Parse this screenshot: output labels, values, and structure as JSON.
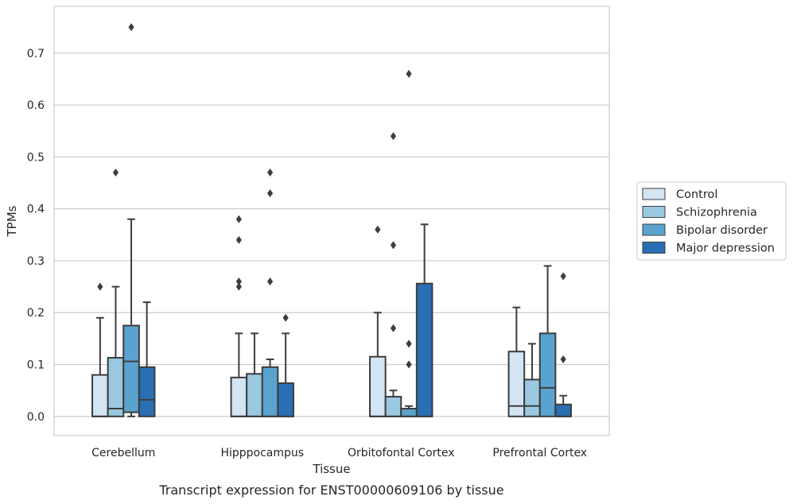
{
  "caption": "Transcript expression for ENST00000609106 by tissue",
  "chart_data": {
    "type": "boxplot",
    "xlabel": "Tissue",
    "ylabel": "TPMs",
    "ylim": [
      -0.037,
      0.79
    ],
    "yticks": [
      0.0,
      0.1,
      0.2,
      0.3,
      0.4,
      0.5,
      0.6,
      0.7
    ],
    "ytick_labels": [
      "0.0",
      "0.1",
      "0.2",
      "0.3",
      "0.4",
      "0.5",
      "0.6",
      "0.7"
    ],
    "grid": "horizontal",
    "legend_position": "right",
    "categories": [
      "Cerebellum",
      "Hipppocampus",
      "Orbitofontal Cortex",
      "Prefrontal Cortex"
    ],
    "series": [
      {
        "name": "Control",
        "color": "#d3e4f3",
        "boxes": [
          {
            "q1": 0.0,
            "median": 0.0,
            "q3": 0.08,
            "whisker_low": 0.0,
            "whisker_high": 0.19,
            "outliers": [
              0.25
            ]
          },
          {
            "q1": 0.0,
            "median": 0.0,
            "q3": 0.075,
            "whisker_low": 0.0,
            "whisker_high": 0.16,
            "outliers": [
              0.25,
              0.26,
              0.34,
              0.38
            ]
          },
          {
            "q1": 0.0,
            "median": 0.0,
            "q3": 0.115,
            "whisker_low": 0.0,
            "whisker_high": 0.2,
            "outliers": [
              0.36
            ]
          },
          {
            "q1": 0.0,
            "median": 0.02,
            "q3": 0.125,
            "whisker_low": 0.0,
            "whisker_high": 0.21,
            "outliers": []
          }
        ]
      },
      {
        "name": "Schizophrenia",
        "color": "#9ac8e0",
        "boxes": [
          {
            "q1": 0.0,
            "median": 0.015,
            "q3": 0.113,
            "whisker_low": 0.0,
            "whisker_high": 0.25,
            "outliers": [
              0.47
            ]
          },
          {
            "q1": 0.0,
            "median": 0.0,
            "q3": 0.082,
            "whisker_low": 0.0,
            "whisker_high": 0.16,
            "outliers": []
          },
          {
            "q1": 0.0,
            "median": 0.0,
            "q3": 0.038,
            "whisker_low": 0.0,
            "whisker_high": 0.05,
            "outliers": [
              0.17,
              0.33,
              0.54
            ]
          },
          {
            "q1": 0.0,
            "median": 0.02,
            "q3": 0.071,
            "whisker_low": 0.0,
            "whisker_high": 0.14,
            "outliers": []
          }
        ]
      },
      {
        "name": "Bipolar disorder",
        "color": "#5ba3cf",
        "boxes": [
          {
            "q1": 0.008,
            "median": 0.106,
            "q3": 0.175,
            "whisker_low": 0.0,
            "whisker_high": 0.38,
            "outliers": [
              0.75
            ]
          },
          {
            "q1": 0.0,
            "median": 0.0,
            "q3": 0.095,
            "whisker_low": 0.0,
            "whisker_high": 0.11,
            "outliers": [
              0.26,
              0.43,
              0.47
            ]
          },
          {
            "q1": 0.0,
            "median": 0.0,
            "q3": 0.015,
            "whisker_low": 0.0,
            "whisker_high": 0.02,
            "outliers": [
              0.1,
              0.14,
              0.66
            ]
          },
          {
            "q1": 0.0,
            "median": 0.055,
            "q3": 0.16,
            "whisker_low": 0.0,
            "whisker_high": 0.29,
            "outliers": []
          }
        ]
      },
      {
        "name": "Major depression",
        "color": "#2a6eb3",
        "boxes": [
          {
            "q1": 0.0,
            "median": 0.032,
            "q3": 0.095,
            "whisker_low": 0.0,
            "whisker_high": 0.22,
            "outliers": []
          },
          {
            "q1": 0.0,
            "median": 0.0,
            "q3": 0.064,
            "whisker_low": 0.0,
            "whisker_high": 0.16,
            "outliers": [
              0.19
            ]
          },
          {
            "q1": 0.0,
            "median": 0.0,
            "q3": 0.256,
            "whisker_low": 0.0,
            "whisker_high": 0.37,
            "outliers": []
          },
          {
            "q1": 0.0,
            "median": 0.0,
            "q3": 0.023,
            "whisker_low": 0.0,
            "whisker_high": 0.04,
            "outliers": [
              0.11,
              0.27
            ]
          }
        ]
      }
    ]
  }
}
